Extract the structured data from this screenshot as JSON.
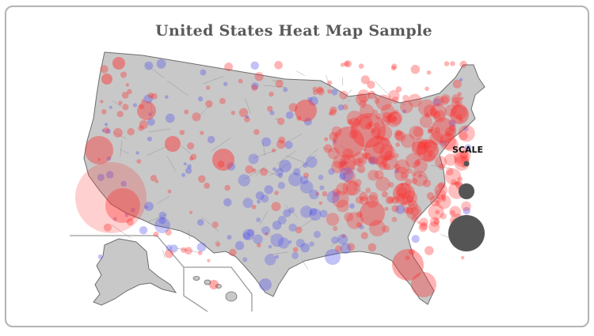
{
  "title": "United States Heat Map Sample",
  "legend": {
    "label": "SCALE",
    "sizes": [
      "small",
      "medium",
      "large"
    ],
    "color": "#555555"
  },
  "colors": {
    "land": "#c8c8c8",
    "border": "#6e6e6e",
    "hot": "#ff2a2a",
    "cold": "#5050ee",
    "frame": "#b5b5b5",
    "title": "#5a5a5a"
  }
}
